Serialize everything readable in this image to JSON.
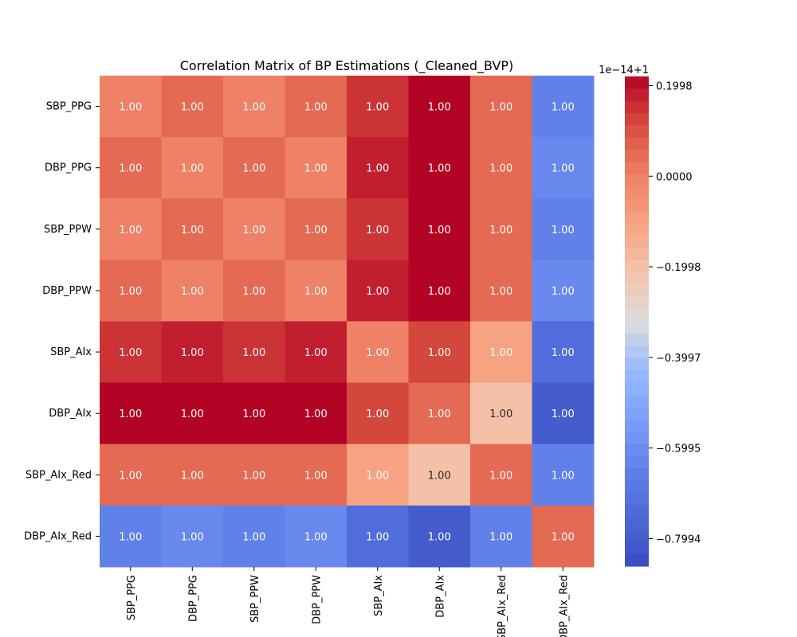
{
  "chart_data": {
    "type": "heatmap",
    "title": "Correlation Matrix of BP Estimations (_Cleaned_BVP)",
    "xlabel": "",
    "ylabel": "",
    "rows": [
      "SBP_PPG",
      "DBP_PPG",
      "SBP_PPW",
      "DBP_PPW",
      "SBP_AIx",
      "DBP_AIx",
      "SBP_AIx_Red",
      "DBP_AIx_Red"
    ],
    "columns": [
      "SBP_PPG",
      "DBP_PPG",
      "SBP_PPW",
      "DBP_PPW",
      "SBP_AIx",
      "DBP_AIx",
      "SBP_AIx_Red",
      "DBP_AIx_Red"
    ],
    "cell_label": "1.00",
    "offset_deviation_e14": [
      [
        0.0,
        0.05,
        0.0,
        0.05,
        0.15,
        0.22,
        0.05,
        -0.65
      ],
      [
        0.05,
        0.0,
        0.05,
        0.0,
        0.18,
        0.22,
        0.05,
        -0.62
      ],
      [
        0.0,
        0.05,
        0.0,
        0.05,
        0.15,
        0.22,
        0.05,
        -0.65
      ],
      [
        0.05,
        0.0,
        0.05,
        0.0,
        0.18,
        0.22,
        0.05,
        -0.62
      ],
      [
        0.15,
        0.18,
        0.15,
        0.18,
        0.0,
        0.12,
        -0.1,
        -0.73
      ],
      [
        0.22,
        0.22,
        0.22,
        0.22,
        0.12,
        0.05,
        -0.2,
        -0.8
      ],
      [
        0.05,
        0.05,
        0.05,
        0.05,
        -0.1,
        -0.2,
        0.05,
        -0.65
      ],
      [
        -0.65,
        -0.62,
        -0.65,
        -0.62,
        -0.73,
        -0.8,
        -0.65,
        0.05
      ]
    ],
    "colorbar": {
      "offset_label": "1e−14+1",
      "vmin": -0.86,
      "vmax": 0.22,
      "ticks": [
        0.1998,
        0.0,
        -0.1998,
        -0.3997,
        -0.5995,
        -0.7994
      ],
      "tick_labels": [
        "0.1998",
        "0.0000",
        "−0.1998",
        "−0.3997",
        "−0.5995",
        "−0.7994"
      ],
      "colormap": "coolwarm"
    },
    "grid": false
  }
}
